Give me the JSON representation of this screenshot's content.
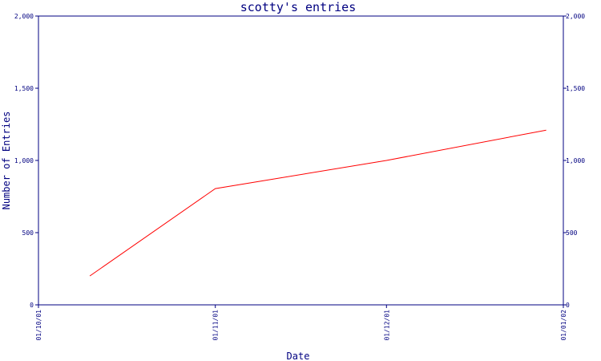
{
  "chart_data": {
    "type": "line",
    "title": "scotty's entries",
    "xlabel": "Date",
    "ylabel": "Number of Entries",
    "x_ticks": [
      "01/10/01",
      "01/11/01",
      "01/12/01",
      "01/01/02"
    ],
    "x_range": [
      "2001-10-01",
      "2002-01-01"
    ],
    "ylim": [
      0,
      2000
    ],
    "y_ticks": [
      0,
      500,
      1000,
      1500,
      2000
    ],
    "y_tick_labels": [
      "0",
      "500",
      "1,000",
      "1,500",
      "2,000"
    ],
    "right_axis": true,
    "grid": false,
    "series": [
      {
        "x": [
          "2001-10-10",
          "2001-11-01",
          "2001-12-01",
          "2001-12-29"
        ],
        "y": [
          200,
          805,
          1000,
          1210
        ]
      }
    ],
    "colors": {
      "axis": "#000080",
      "line": "#ff0000",
      "background": "#ffffff"
    }
  }
}
